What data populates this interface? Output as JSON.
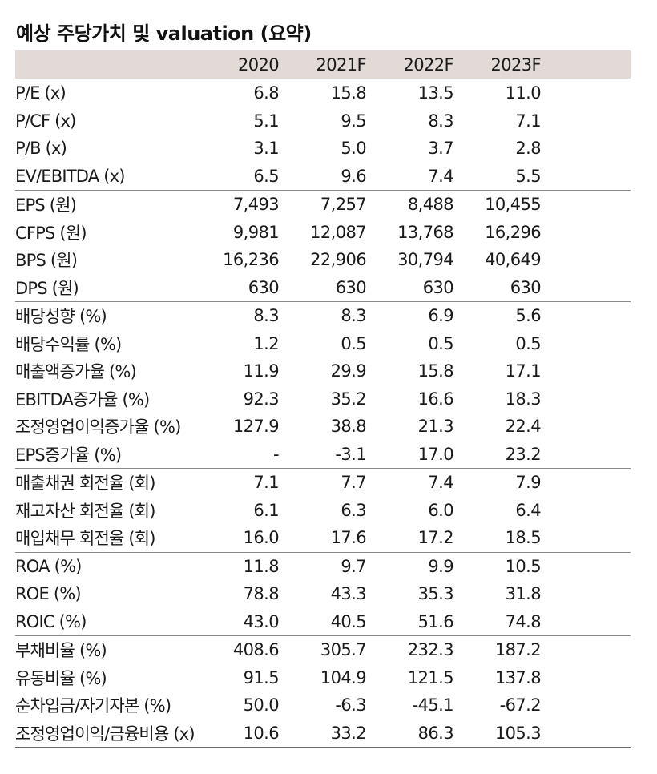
{
  "title": "예상 주당가치 및 valuation (요약)",
  "columns": [
    "2020",
    "2021F",
    "2022F",
    "2023F"
  ],
  "groups": [
    [
      {
        "label": "P/E (x)",
        "values": [
          "6.8",
          "15.8",
          "13.5",
          "11.0"
        ]
      },
      {
        "label": "P/CF (x)",
        "values": [
          "5.1",
          "9.5",
          "8.3",
          "7.1"
        ]
      },
      {
        "label": "P/B (x)",
        "values": [
          "3.1",
          "5.0",
          "3.7",
          "2.8"
        ]
      },
      {
        "label": "EV/EBITDA (x)",
        "values": [
          "6.5",
          "9.6",
          "7.4",
          "5.5"
        ]
      }
    ],
    [
      {
        "label": "EPS (원)",
        "values": [
          "7,493",
          "7,257",
          "8,488",
          "10,455"
        ]
      },
      {
        "label": "CFPS (원)",
        "values": [
          "9,981",
          "12,087",
          "13,768",
          "16,296"
        ]
      },
      {
        "label": "BPS (원)",
        "values": [
          "16,236",
          "22,906",
          "30,794",
          "40,649"
        ]
      },
      {
        "label": "DPS (원)",
        "values": [
          "630",
          "630",
          "630",
          "630"
        ]
      }
    ],
    [
      {
        "label": "배당성향 (%)",
        "values": [
          "8.3",
          "8.3",
          "6.9",
          "5.6"
        ]
      },
      {
        "label": "배당수익률 (%)",
        "values": [
          "1.2",
          "0.5",
          "0.5",
          "0.5"
        ]
      },
      {
        "label": "매출액증가율 (%)",
        "values": [
          "11.9",
          "29.9",
          "15.8",
          "17.1"
        ]
      },
      {
        "label": "EBITDA증가율 (%)",
        "values": [
          "92.3",
          "35.2",
          "16.6",
          "18.3"
        ]
      },
      {
        "label": "조정영업이익증가율 (%)",
        "values": [
          "127.9",
          "38.8",
          "21.3",
          "22.4"
        ]
      },
      {
        "label": "EPS증가율 (%)",
        "values": [
          "-",
          "-3.1",
          "17.0",
          "23.2"
        ]
      }
    ],
    [
      {
        "label": "매출채권 회전율 (회)",
        "values": [
          "7.1",
          "7.7",
          "7.4",
          "7.9"
        ]
      },
      {
        "label": "재고자산 회전율 (회)",
        "values": [
          "6.1",
          "6.3",
          "6.0",
          "6.4"
        ]
      },
      {
        "label": "매입채무 회전율 (회)",
        "values": [
          "16.0",
          "17.6",
          "17.2",
          "18.5"
        ]
      }
    ],
    [
      {
        "label": "ROA (%)",
        "values": [
          "11.8",
          "9.7",
          "9.9",
          "10.5"
        ]
      },
      {
        "label": "ROE (%)",
        "values": [
          "78.8",
          "43.3",
          "35.3",
          "31.8"
        ]
      },
      {
        "label": "ROIC (%)",
        "values": [
          "43.0",
          "40.5",
          "51.6",
          "74.8"
        ]
      }
    ],
    [
      {
        "label": "부채비율 (%)",
        "values": [
          "408.6",
          "305.7",
          "232.3",
          "187.2"
        ]
      },
      {
        "label": "유동비율 (%)",
        "values": [
          "91.5",
          "104.9",
          "121.5",
          "137.8"
        ]
      },
      {
        "label": "순차입금/자기자본 (%)",
        "values": [
          "50.0",
          "-6.3",
          "-45.1",
          "-67.2"
        ]
      },
      {
        "label": "조정영업이익/금융비용 (x)",
        "values": [
          "10.6",
          "33.2",
          "86.3",
          "105.3"
        ]
      }
    ]
  ]
}
